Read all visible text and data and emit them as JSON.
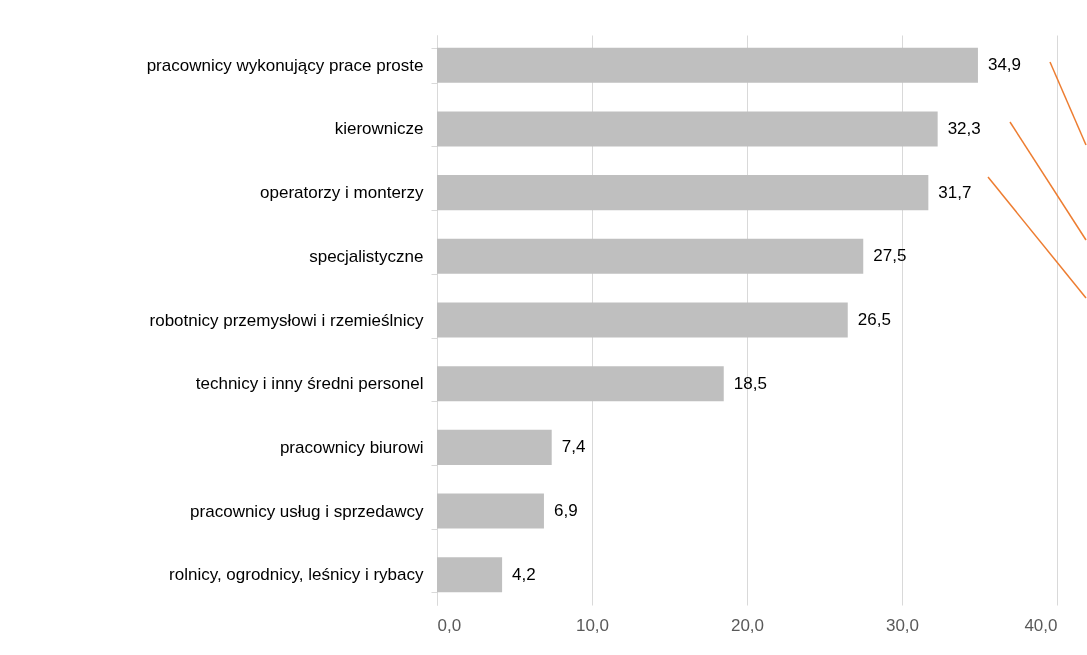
{
  "chart_data": {
    "type": "bar",
    "orientation": "horizontal",
    "categories": [
      "pracownicy wykonujący prace proste",
      "kierownicze",
      "operatorzy i monterzy",
      "specjalistyczne",
      "robotnicy przemysłowi i rzemieślnicy",
      "technicy i inny średni personel",
      "pracownicy biurowi",
      "pracownicy usług i sprzedawcy",
      "rolnicy, ogrodnicy, leśnicy i rybacy"
    ],
    "values": [
      34.9,
      32.3,
      31.7,
      27.5,
      26.5,
      18.5,
      7.4,
      6.9,
      4.2
    ],
    "color": "#bfbfbf",
    "xlim": [
      0,
      40
    ],
    "xticks": [
      {
        "value": 0,
        "label": "0,0"
      },
      {
        "value": 10,
        "label": "10,0"
      },
      {
        "value": 20,
        "label": "20,0"
      },
      {
        "value": 30,
        "label": "30,0"
      },
      {
        "value": 40,
        "label": "40,0"
      }
    ],
    "value_labels": [
      "34,9",
      "32,3",
      "31,7",
      "27,5",
      "26,5",
      "18,5",
      "7,4",
      "6,9",
      "4,2"
    ],
    "grid": "x"
  }
}
